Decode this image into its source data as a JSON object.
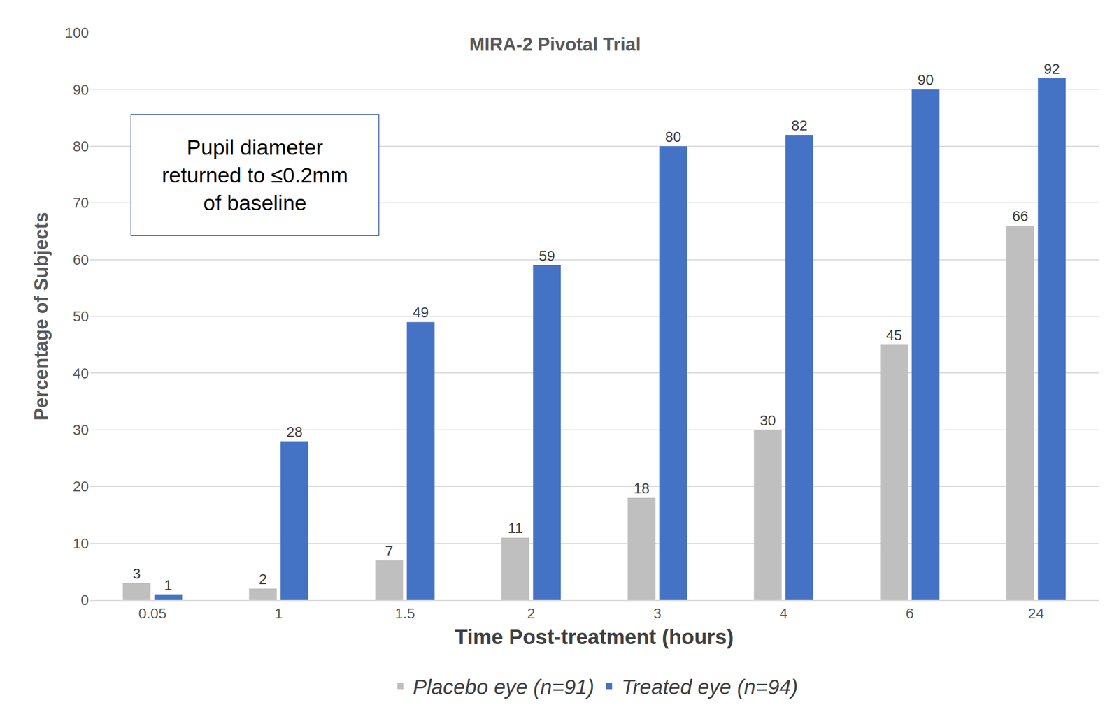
{
  "chart_data": {
    "type": "bar",
    "title": "MIRA-2 Pivotal Trial",
    "annotation": [
      "Pupil diameter",
      "returned to ≤0.2mm",
      "of baseline"
    ],
    "x_label": "Time Post-treatment (hours)",
    "y_label": "Percentage of Subjects",
    "categories": [
      "0.05",
      "1",
      "1.5",
      "2",
      "3",
      "4",
      "6",
      "24"
    ],
    "series": [
      {
        "name": "Placebo eye (n=91)",
        "color": "#bfbfbf",
        "values": [
          3,
          2,
          7,
          11,
          18,
          30,
          45,
          66
        ]
      },
      {
        "name": "Treated eye (n=94)",
        "color": "#4472c4",
        "values": [
          1,
          28,
          49,
          59,
          80,
          82,
          90,
          92
        ]
      }
    ],
    "ylim": [
      0,
      100
    ],
    "yticks": [
      0,
      10,
      20,
      30,
      40,
      50,
      60,
      70,
      80,
      90,
      100
    ],
    "grid": true,
    "legend": "bottom",
    "data_labels": true
  }
}
